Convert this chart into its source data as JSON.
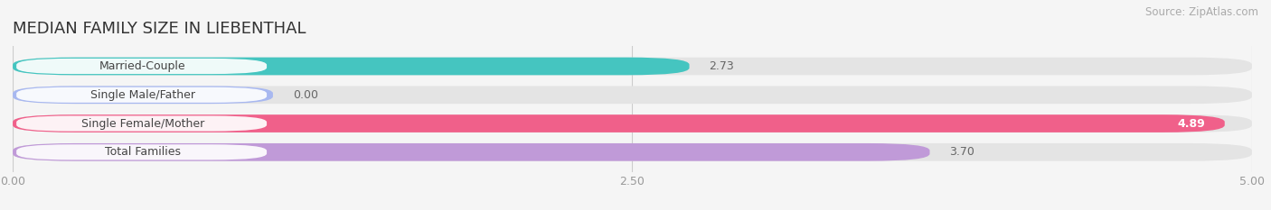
{
  "title": "MEDIAN FAMILY SIZE IN LIEBENTHAL",
  "source": "Source: ZipAtlas.com",
  "categories": [
    "Married-Couple",
    "Single Male/Father",
    "Single Female/Mother",
    "Total Families"
  ],
  "values": [
    2.73,
    0.0,
    4.89,
    3.7
  ],
  "bar_colors": [
    "#45c5c0",
    "#a8b8f0",
    "#f0608a",
    "#c09ad8"
  ],
  "label_text_colors": [
    "#444444",
    "#444444",
    "#444444",
    "#444444"
  ],
  "value_text_colors": [
    "#555555",
    "#555555",
    "#ffffff",
    "#ffffff"
  ],
  "background_color": "#f5f5f5",
  "bar_background_color": "#e4e4e4",
  "label_bg_color": "#ffffff",
  "xlim": [
    0,
    5.0
  ],
  "xticks": [
    0.0,
    2.5,
    5.0
  ],
  "xtick_labels": [
    "0.00",
    "2.50",
    "5.00"
  ],
  "title_fontsize": 13,
  "label_fontsize": 9,
  "value_fontsize": 9,
  "source_fontsize": 8.5
}
